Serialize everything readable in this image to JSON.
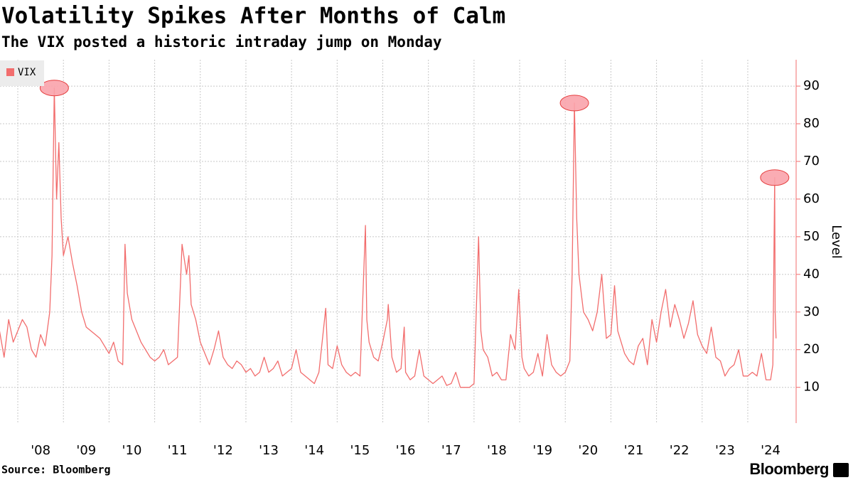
{
  "chart_data": {
    "type": "line",
    "title": "Volatility Spikes After Months of Calm",
    "subtitle": "The VIX posted a historic intraday jump on Monday",
    "y_label": "Level",
    "source": "Source: Bloomberg",
    "logo": "Bloomberg",
    "legend": "top-left",
    "grid": true,
    "xlim": [
      2007.61,
      2025.06
    ],
    "ylim": [
      0.5,
      97
    ],
    "yticks": [
      10,
      20,
      30,
      40,
      50,
      60,
      70,
      80,
      90
    ],
    "xticks": [
      {
        "value": 2008,
        "label": "'08"
      },
      {
        "value": 2009,
        "label": "'09"
      },
      {
        "value": 2010,
        "label": "'10"
      },
      {
        "value": 2011,
        "label": "'11"
      },
      {
        "value": 2012,
        "label": "'12"
      },
      {
        "value": 2013,
        "label": "'13"
      },
      {
        "value": 2014,
        "label": "'14"
      },
      {
        "value": 2015,
        "label": "'15"
      },
      {
        "value": 2016,
        "label": "'16"
      },
      {
        "value": 2017,
        "label": "'17"
      },
      {
        "value": 2018,
        "label": "'18"
      },
      {
        "value": 2019,
        "label": "'19"
      },
      {
        "value": 2020,
        "label": "'20"
      },
      {
        "value": 2021,
        "label": "'21"
      },
      {
        "value": 2022,
        "label": "'22"
      },
      {
        "value": 2023,
        "label": "'23"
      },
      {
        "value": 2024,
        "label": "'24"
      }
    ],
    "x": [
      2007.6,
      2007.7,
      2007.8,
      2007.9,
      2008.0,
      2008.1,
      2008.2,
      2008.3,
      2008.4,
      2008.5,
      2008.6,
      2008.7,
      2008.75,
      2008.8,
      2008.85,
      2008.9,
      2008.95,
      2009.0,
      2009.1,
      2009.2,
      2009.3,
      2009.4,
      2009.5,
      2009.6,
      2009.7,
      2009.8,
      2009.9,
      2010.0,
      2010.1,
      2010.2,
      2010.3,
      2010.35,
      2010.4,
      2010.5,
      2010.6,
      2010.7,
      2010.8,
      2010.9,
      2011.0,
      2011.1,
      2011.2,
      2011.3,
      2011.4,
      2011.5,
      2011.6,
      2011.7,
      2011.75,
      2011.8,
      2011.9,
      2012.0,
      2012.1,
      2012.2,
      2012.3,
      2012.4,
      2012.5,
      2012.6,
      2012.7,
      2012.8,
      2012.9,
      2013.0,
      2013.1,
      2013.2,
      2013.3,
      2013.4,
      2013.5,
      2013.6,
      2013.7,
      2013.8,
      2013.9,
      2014.0,
      2014.1,
      2014.2,
      2014.3,
      2014.4,
      2014.5,
      2014.6,
      2014.75,
      2014.8,
      2014.9,
      2015.0,
      2015.1,
      2015.2,
      2015.3,
      2015.4,
      2015.5,
      2015.62,
      2015.65,
      2015.7,
      2015.8,
      2015.9,
      2016.0,
      2016.1,
      2016.12,
      2016.2,
      2016.3,
      2016.4,
      2016.47,
      2016.5,
      2016.6,
      2016.7,
      2016.8,
      2016.9,
      2017.0,
      2017.1,
      2017.2,
      2017.3,
      2017.4,
      2017.5,
      2017.6,
      2017.7,
      2017.8,
      2017.9,
      2018.0,
      2018.1,
      2018.15,
      2018.2,
      2018.3,
      2018.4,
      2018.5,
      2018.6,
      2018.7,
      2018.8,
      2018.9,
      2018.98,
      2019.05,
      2019.1,
      2019.2,
      2019.3,
      2019.4,
      2019.5,
      2019.6,
      2019.7,
      2019.8,
      2019.9,
      2020.0,
      2020.1,
      2020.15,
      2020.2,
      2020.25,
      2020.3,
      2020.4,
      2020.5,
      2020.6,
      2020.7,
      2020.75,
      2020.8,
      2020.9,
      2021.0,
      2021.08,
      2021.15,
      2021.3,
      2021.4,
      2021.5,
      2021.6,
      2021.7,
      2021.8,
      2021.9,
      2022.0,
      2022.1,
      2022.2,
      2022.3,
      2022.4,
      2022.5,
      2022.6,
      2022.7,
      2022.8,
      2022.9,
      2023.0,
      2023.1,
      2023.2,
      2023.3,
      2023.4,
      2023.5,
      2023.6,
      2023.7,
      2023.8,
      2023.9,
      2024.0,
      2024.1,
      2024.2,
      2024.3,
      2024.4,
      2024.5,
      2024.55,
      2024.59,
      2024.6,
      2024.62
    ],
    "series": [
      {
        "name": "VIX",
        "color": "#f26d6d",
        "values": [
          25,
          18,
          28,
          22,
          25,
          28,
          26,
          20,
          18,
          24,
          21,
          30,
          45,
          89.5,
          60,
          75,
          55,
          45,
          50,
          43,
          37,
          30,
          26,
          25,
          24,
          23,
          21,
          19,
          22,
          17,
          16,
          48,
          35,
          28,
          25,
          22,
          20,
          18,
          17,
          18,
          20,
          16,
          17,
          18,
          48,
          40,
          45,
          32,
          28,
          22,
          19,
          16,
          20,
          25,
          18,
          16,
          15,
          17,
          16,
          14,
          15,
          13,
          14,
          18,
          14,
          15,
          17,
          13,
          14,
          15,
          20,
          14,
          13,
          12,
          11,
          14,
          31,
          16,
          15,
          21,
          16,
          14,
          13,
          14,
          13,
          53,
          28,
          22,
          18,
          17,
          22,
          28,
          32,
          18,
          14,
          15,
          26,
          14,
          12,
          13,
          20,
          13,
          12,
          11,
          12,
          13,
          10.5,
          11,
          14,
          10,
          10,
          10,
          11,
          50,
          25,
          20,
          18,
          13,
          14,
          12,
          12,
          24,
          20,
          36,
          18,
          15,
          13,
          14,
          19,
          13,
          24,
          16,
          14,
          13,
          14,
          17,
          40,
          85.5,
          55,
          40,
          30,
          28,
          25,
          30,
          35,
          40,
          23,
          24,
          37,
          25,
          19,
          17,
          16,
          21,
          23,
          16,
          28,
          22,
          30,
          36,
          26,
          32,
          28,
          23,
          27,
          33,
          24,
          21,
          19,
          26,
          18,
          17,
          13,
          15,
          16,
          20,
          13,
          13,
          14,
          13,
          19,
          12,
          12,
          16,
          65.7,
          30,
          23
        ]
      }
    ]
  }
}
